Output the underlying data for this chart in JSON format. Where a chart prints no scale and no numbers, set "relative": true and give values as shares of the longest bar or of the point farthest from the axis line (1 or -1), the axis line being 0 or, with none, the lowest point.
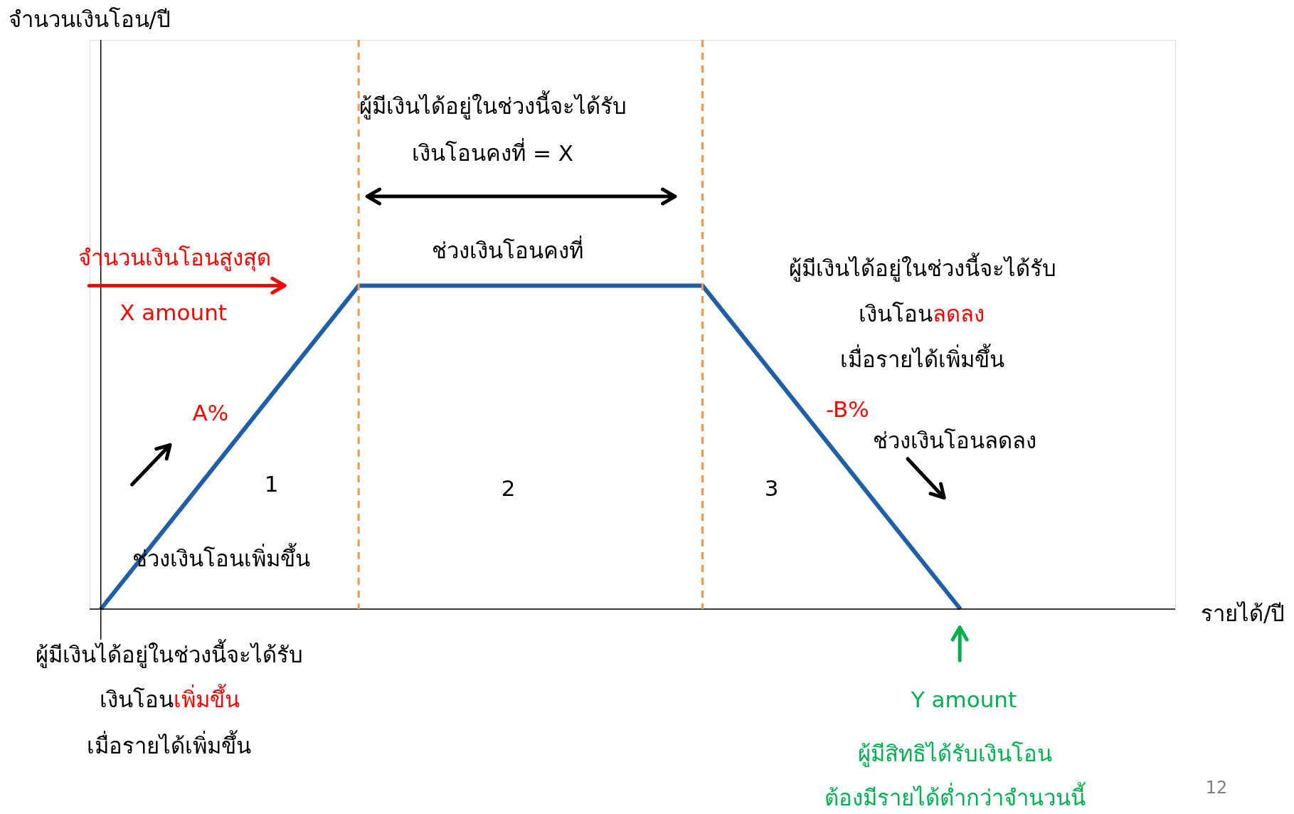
{
  "chart_data": {
    "type": "line",
    "relative": true,
    "categories": [
      null,
      null,
      null,
      null,
      null,
      null,
      null,
      null,
      null,
      null,
      null
    ],
    "tick_labels": false,
    "grid": false,
    "marker": "none",
    "line_style": "solid",
    "series": [
      {
        "color": "#1f5fa8",
        "values": [
          0,
          0.333,
          0.667,
          1,
          1,
          1,
          1,
          1,
          0.667,
          0.333,
          0
        ]
      }
    ],
    "ref_lines": [
      {
        "axis": "x",
        "color": "#f79646",
        "line_style": "dashed"
      },
      {
        "axis": "x",
        "color": "#f79646",
        "line_style": "dashed"
      }
    ],
    "annotations": [
      "จำนวนเงินโอน/ปี",
      "รายได้/ปี",
      "ผู้มีเงินได้อยู่ในช่วงนี้จะได้รับ",
      "เงินโอนคงที่ = X",
      "ช่วงเงินโอนคงที่",
      "จำนวนเงินโอนสูงสุด",
      "X amount",
      "A%",
      "1",
      "2",
      "3",
      "ช่วงเงินโอนเพิ่มขึ้น",
      "ผู้มีเงินได้อยู่ในช่วงนี้จะได้รับ",
      "เงินโอน",
      "เพิ่มขึ้น",
      "เมื่อรายได้เพิ่มขึ้น",
      "ผู้มีเงินได้อยู่ในช่วงนี้จะได้รับ",
      "เงินโอน",
      "ลดลง",
      "เมื่อรายได้เพิ่มขึ้น",
      "-B%",
      "ช่วงเงินโอนลดลง",
      "Y amount",
      "ผู้มีสิทธิได้รับเงินโอน",
      "ต้องมีรายได้ต่ำกว่าจำนวนนี้",
      "12"
    ]
  }
}
